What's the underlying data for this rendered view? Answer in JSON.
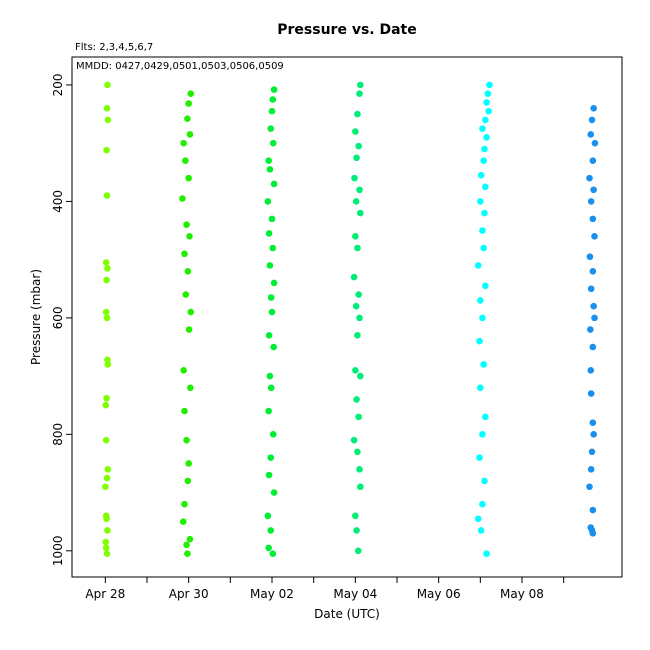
{
  "chart_data": {
    "type": "scatter",
    "title": "Pressure  vs. Date",
    "annotations": [
      "Flts: 2,3,4,5,6,7",
      "MMDD: 0427,0429,0501,0503,0506,0509"
    ],
    "x_label": "Date (UTC)",
    "y_label": "Pressure (mbar)",
    "xlim": [
      -0.8,
      12.4
    ],
    "xticks": [
      {
        "value": 0,
        "label": "Apr 28"
      },
      {
        "value": 2,
        "label": "Apr 30"
      },
      {
        "value": 4,
        "label": "May 02"
      },
      {
        "value": 6,
        "label": "May 04"
      },
      {
        "value": 8,
        "label": "May 06"
      },
      {
        "value": 10,
        "label": "May 08"
      }
    ],
    "xminorticks": [
      1,
      3,
      5,
      7,
      9,
      11
    ],
    "ylim": [
      1045,
      152
    ],
    "yticks": [
      200,
      400,
      600,
      800,
      1000
    ],
    "series": [
      {
        "color": "#80ff00",
        "x": [
          0.05,
          0.04,
          0.06,
          0.03,
          0.04,
          0.02,
          0.05,
          0.03,
          0.02,
          0.04,
          0.05,
          0.06,
          0.03,
          0.01,
          0.02,
          0.06,
          0.04,
          0.0,
          0.02,
          0.03,
          0.05,
          0.01,
          0.02,
          0.04
        ],
        "values": [
          200,
          240,
          260,
          312,
          390,
          505,
          515,
          535,
          590,
          600,
          672,
          680,
          738,
          750,
          810,
          860,
          875,
          890,
          940,
          945,
          965,
          985,
          995,
          1005
        ]
      },
      {
        "color": "#22ee00",
        "x": [
          2.05,
          2.0,
          1.97,
          2.03,
          1.88,
          1.92,
          2.0,
          1.85,
          1.95,
          2.02,
          1.9,
          1.98,
          1.93,
          2.05,
          2.01,
          1.88,
          2.04,
          1.9,
          1.95,
          2.0,
          1.98,
          1.9,
          1.87,
          2.03,
          1.95,
          1.97
        ],
        "values": [
          215,
          232,
          258,
          285,
          300,
          330,
          360,
          395,
          440,
          460,
          490,
          520,
          560,
          590,
          620,
          690,
          720,
          760,
          810,
          850,
          880,
          920,
          950,
          980,
          990,
          1005
        ]
      },
      {
        "color": "#00ee33",
        "x": [
          4.05,
          4.02,
          4.0,
          3.97,
          4.03,
          3.92,
          3.95,
          4.05,
          3.9,
          4.0,
          3.93,
          4.02,
          3.95,
          4.05,
          3.98,
          4.0,
          3.93,
          4.04,
          3.95,
          3.98,
          3.92,
          4.03,
          3.97,
          3.93,
          4.05,
          3.9,
          3.97,
          3.92,
          4.02
        ],
        "values": [
          208,
          225,
          245,
          275,
          300,
          330,
          345,
          370,
          400,
          430,
          455,
          480,
          510,
          540,
          565,
          590,
          630,
          650,
          700,
          720,
          760,
          800,
          840,
          870,
          900,
          940,
          965,
          995,
          1005
        ]
      },
      {
        "color": "#00ee77",
        "x": [
          6.12,
          6.1,
          6.05,
          6.0,
          6.08,
          6.03,
          5.98,
          6.1,
          6.02,
          6.12,
          6.0,
          6.05,
          5.97,
          6.08,
          6.02,
          6.1,
          6.05,
          6.0,
          6.12,
          6.03,
          6.08,
          5.97,
          6.05,
          6.1,
          6.12,
          6.0,
          6.03,
          6.07
        ],
        "values": [
          200,
          215,
          250,
          280,
          305,
          325,
          360,
          380,
          400,
          420,
          460,
          480,
          530,
          560,
          580,
          600,
          630,
          690,
          700,
          740,
          770,
          810,
          830,
          860,
          890,
          940,
          965,
          1000
        ]
      },
      {
        "color": "#00ffff",
        "x": [
          9.22,
          9.18,
          9.15,
          9.2,
          9.12,
          9.05,
          9.15,
          9.1,
          9.08,
          9.02,
          9.12,
          9.0,
          9.1,
          9.05,
          9.08,
          8.95,
          9.12,
          9.0,
          9.05,
          8.98,
          9.08,
          9.0,
          9.12,
          9.05,
          8.98,
          9.1,
          9.05,
          8.95,
          9.02,
          9.15
        ],
        "values": [
          200,
          215,
          230,
          245,
          260,
          275,
          290,
          310,
          330,
          355,
          375,
          400,
          420,
          450,
          480,
          510,
          545,
          570,
          600,
          640,
          680,
          720,
          770,
          800,
          840,
          880,
          920,
          945,
          965,
          1005
        ]
      },
      {
        "color": "#1a90ee",
        "x": [
          11.72,
          11.68,
          11.65,
          11.75,
          11.7,
          11.62,
          11.72,
          11.66,
          11.7,
          11.74,
          11.63,
          11.7,
          11.66,
          11.72,
          11.74,
          11.64,
          11.7,
          11.65,
          11.66,
          11.7,
          11.72,
          11.68,
          11.66,
          11.62,
          11.7,
          11.65,
          11.68,
          11.7
        ],
        "values": [
          240,
          260,
          285,
          300,
          330,
          360,
          380,
          400,
          430,
          460,
          495,
          520,
          550,
          580,
          600,
          620,
          650,
          690,
          730,
          780,
          800,
          830,
          860,
          890,
          930,
          960,
          965,
          970
        ]
      }
    ]
  }
}
